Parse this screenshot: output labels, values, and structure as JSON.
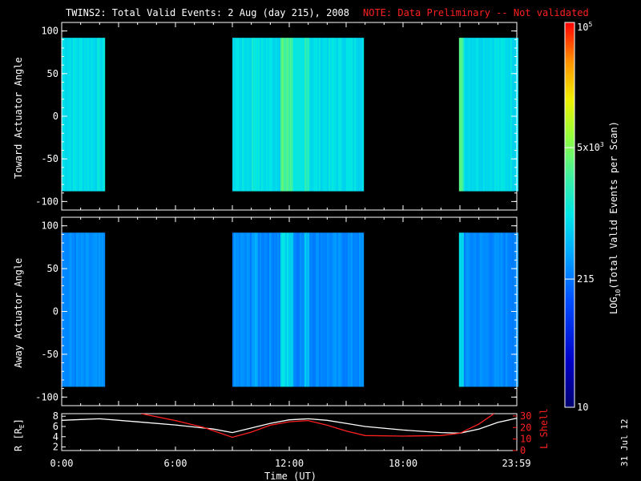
{
  "title": "TWINS2: Total Valid Events:  2 Aug (day 215), 2008",
  "note": "NOTE: Data Preliminary -- Not validated",
  "stamp": "31 Jul 12",
  "colorbar": {
    "label": "LOG10(Total Valid Events per Scan)",
    "label_main": "LOG",
    "label_sub": "10",
    "label_rest": "(Total Valid Events per Scan)",
    "ticks": [
      {
        "label": "10",
        "value": 10
      },
      {
        "label": "215",
        "value": 215
      },
      {
        "label": "5x10",
        "sup": "3",
        "value": 5000
      },
      {
        "label": "10",
        "sup": "5",
        "value": 100000
      }
    ],
    "range": [
      10,
      100000
    ],
    "scale": "log"
  },
  "chart_data": [
    {
      "type": "heatmap",
      "panel": "toward",
      "ylabel": "Toward Actuator Angle",
      "ylim": [
        -110,
        110
      ],
      "yticks": [
        "100",
        "50",
        "0",
        "-50",
        "-100"
      ],
      "xlim_hours": [
        0,
        24
      ],
      "data_angle_range": [
        -88,
        92
      ],
      "data_intervals_hours": [
        [
          0.0,
          2.25
        ],
        [
          9.0,
          15.92
        ],
        [
          20.95,
          24.0
        ]
      ],
      "typical_level": "~300-1000 counts (cyan)",
      "peak_hours": [
        11.5,
        12.2
      ]
    },
    {
      "type": "heatmap",
      "panel": "away",
      "ylabel": "Away Actuator Angle",
      "ylim": [
        -110,
        110
      ],
      "yticks": [
        "100",
        "50",
        "0",
        "-50",
        "-100"
      ],
      "xlim_hours": [
        0,
        24
      ],
      "data_angle_range": [
        -88,
        92
      ],
      "data_intervals_hours": [
        [
          0.0,
          2.25
        ],
        [
          9.0,
          15.92
        ],
        [
          20.95,
          24.0
        ]
      ],
      "typical_level": "~100-300 counts (blue)",
      "peak_hours": [
        11.5,
        12.2
      ]
    },
    {
      "type": "line",
      "panel": "ephemeris",
      "ylabel_left": "R [RE]",
      "ylabel_left_main": "R [R",
      "ylabel_left_sub": "E",
      "ylabel_left_close": "]",
      "ylabel_right": "L Shell",
      "left_ticks": [
        "2",
        "4",
        "6",
        "8"
      ],
      "left_range": [
        1.3,
        8.5
      ],
      "right_ticks": [
        "0",
        "10",
        "20",
        "30"
      ],
      "right_range": [
        0,
        32
      ],
      "series": [
        {
          "name": "R [RE]",
          "axis": "left",
          "color": "#ffffff",
          "x": [
            0,
            2,
            4,
            6,
            8,
            9,
            10,
            11,
            12,
            13,
            14,
            15,
            16,
            18,
            20,
            21,
            22,
            23,
            23.98
          ],
          "y": [
            7.2,
            7.5,
            6.9,
            6.3,
            5.5,
            4.8,
            5.7,
            6.6,
            7.3,
            7.5,
            7.2,
            6.6,
            6.0,
            5.3,
            4.8,
            4.7,
            5.5,
            6.8,
            7.6
          ]
        },
        {
          "name": "L Shell",
          "axis": "right",
          "color": "#ff2020",
          "x": [
            4.2,
            6,
            7.5,
            9.0,
            10,
            11,
            12,
            13,
            14,
            15,
            16,
            18,
            20,
            21,
            22,
            22.8
          ],
          "y": [
            32,
            26,
            20,
            11.5,
            16,
            22,
            25,
            26,
            22,
            17,
            13,
            12.5,
            13,
            15,
            23,
            32
          ]
        }
      ]
    }
  ],
  "xaxis": {
    "label": "Time (UT)",
    "ticks": [
      {
        "label": "0:00",
        "hour": 0
      },
      {
        "label": "6:00",
        "hour": 6
      },
      {
        "label": "12:00",
        "hour": 12
      },
      {
        "label": "18:00",
        "hour": 18
      },
      {
        "label": "23:59",
        "hour": 23.98
      }
    ]
  }
}
